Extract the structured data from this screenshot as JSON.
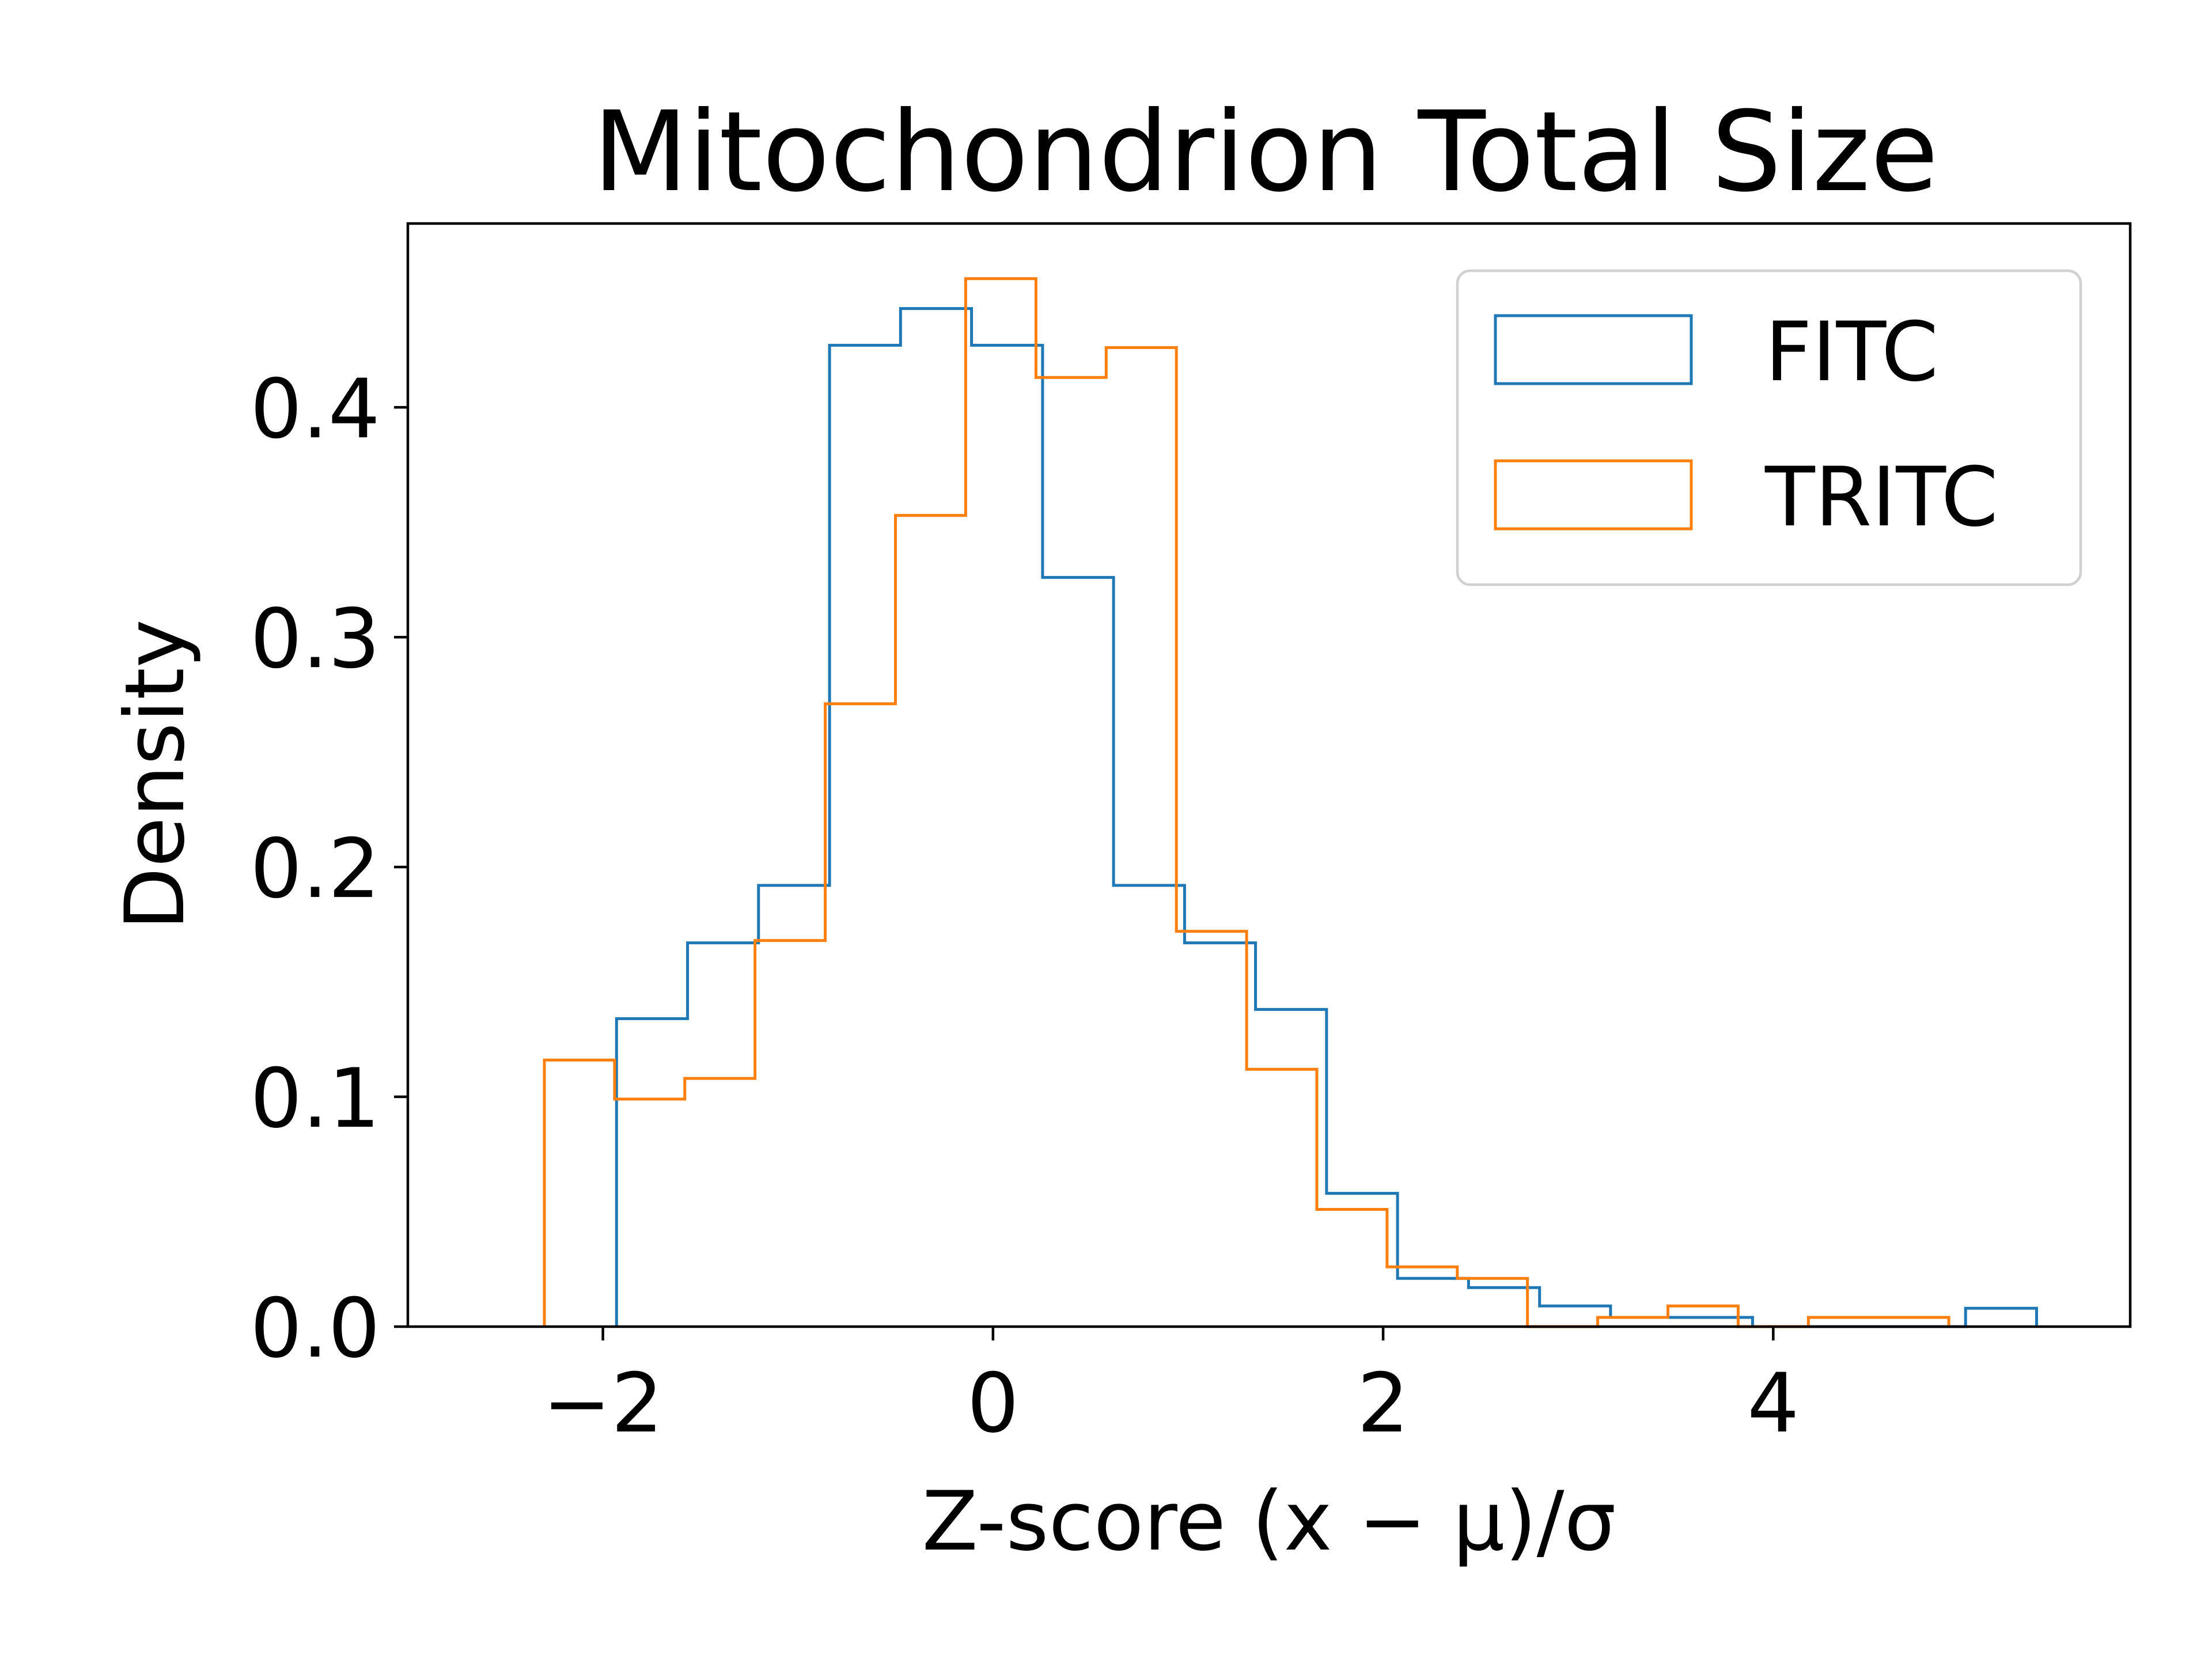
{
  "chart_data": {
    "type": "histogram-step",
    "title": "Mitochondrion Total Size",
    "xlabel": "Z-score (x − μ)/σ",
    "ylabel": "Density",
    "xlim": [
      -3.0,
      5.83
    ],
    "ylim": [
      0,
      0.48
    ],
    "x_ticks": [
      -2,
      0,
      2,
      4
    ],
    "x_tick_labels": [
      "−2",
      "0",
      "2",
      "4"
    ],
    "y_ticks": [
      0.0,
      0.1,
      0.2,
      0.3,
      0.4
    ],
    "y_tick_labels": [
      "0.0",
      "0.1",
      "0.2",
      "0.3",
      "0.4"
    ],
    "grid": false,
    "legend_position": "top-right",
    "series": [
      {
        "name": "FITC",
        "color": "#1f77b4",
        "bin_edges": [
          -1.93,
          -1.566,
          -1.202,
          -0.838,
          -0.474,
          -0.11,
          0.254,
          0.618,
          0.982,
          1.346,
          1.71,
          2.074,
          2.438,
          2.802,
          3.166,
          3.53,
          3.894,
          4.258,
          4.622,
          4.986,
          5.35
        ],
        "values": [
          0.134,
          0.167,
          0.192,
          0.427,
          0.443,
          0.427,
          0.326,
          0.192,
          0.167,
          0.138,
          0.058,
          0.021,
          0.017,
          0.009,
          0.004,
          0.004,
          0.0,
          0.0,
          0.0,
          0.008
        ]
      },
      {
        "name": "TRITC",
        "color": "#ff7f0e",
        "bin_edges": [
          -2.3,
          -1.94,
          -1.58,
          -1.22,
          -0.86,
          -0.5,
          -0.14,
          0.22,
          0.58,
          0.94,
          1.3,
          1.66,
          2.02,
          2.38,
          2.74,
          3.1,
          3.46,
          3.82,
          4.18,
          4.54,
          4.9
        ],
        "values": [
          0.116,
          0.099,
          0.108,
          0.168,
          0.271,
          0.353,
          0.456,
          0.413,
          0.426,
          0.172,
          0.112,
          0.051,
          0.026,
          0.021,
          0.0,
          0.004,
          0.009,
          0.0,
          0.004,
          0.004
        ]
      }
    ]
  }
}
